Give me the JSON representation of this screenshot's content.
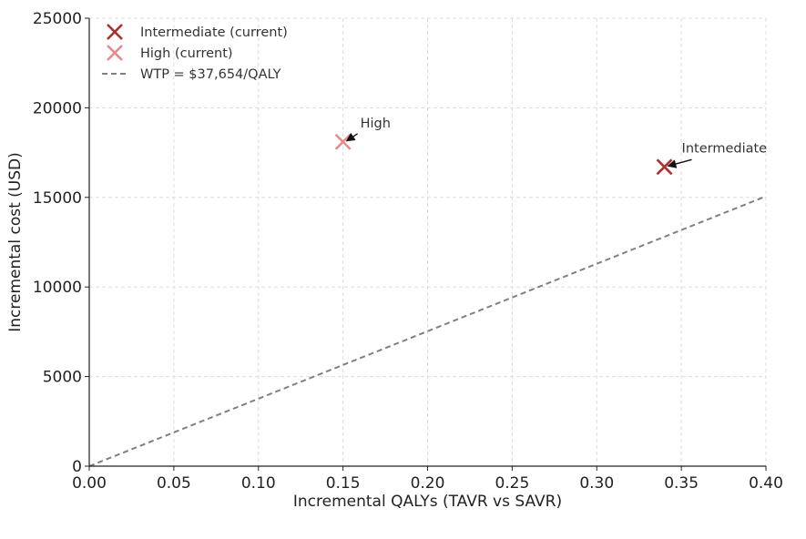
{
  "chart_data": {
    "type": "scatter",
    "xlabel": "Incremental QALYs (TAVR vs SAVR)",
    "ylabel": "Incremental cost (USD)",
    "xlim": [
      0,
      0.4
    ],
    "ylim": [
      0,
      25000
    ],
    "x_ticks": [
      0.0,
      0.05,
      0.1,
      0.15,
      0.2,
      0.25,
      0.3,
      0.35,
      0.4
    ],
    "x_tick_labels": [
      "0.00",
      "0.05",
      "0.10",
      "0.15",
      "0.20",
      "0.25",
      "0.30",
      "0.35",
      "0.40"
    ],
    "y_ticks": [
      0,
      5000,
      10000,
      15000,
      20000,
      25000
    ],
    "y_tick_labels": [
      "0",
      "5000",
      "10000",
      "15000",
      "20000",
      "25000"
    ],
    "grid": true,
    "legend_position": "top-left",
    "series": [
      {
        "name": "Intermediate (current)",
        "marker": "x",
        "color": "#a83232",
        "points": [
          {
            "x": 0.34,
            "y": 16700
          }
        ]
      },
      {
        "name": "High (current)",
        "marker": "x",
        "color": "#e88b8b",
        "points": [
          {
            "x": 0.15,
            "y": 18100
          }
        ]
      }
    ],
    "reference_line": {
      "name": "WTP = $37,654/QALY",
      "slope": 37654,
      "intercept": 0,
      "style": "dashed",
      "color": "#808080"
    },
    "annotations": [
      {
        "text": "Intermediate",
        "x": 0.34,
        "y": 16700
      },
      {
        "text": "High",
        "x": 0.15,
        "y": 18100
      }
    ]
  }
}
